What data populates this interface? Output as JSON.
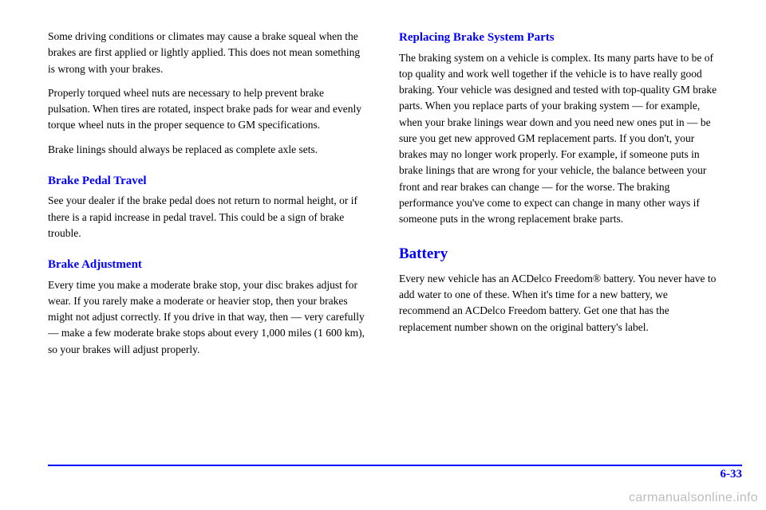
{
  "left": {
    "p1": "Some driving conditions or climates may cause a brake squeal when the brakes are first applied or lightly applied. This does not mean something is wrong with your brakes.",
    "p2": "Properly torqued wheel nuts are necessary to help prevent brake pulsation. When tires are rotated, inspect brake pads for wear and evenly torque wheel nuts in the proper sequence to GM specifications.",
    "p3": "Brake linings should always be replaced as complete axle sets.",
    "h_pedal": "Brake Pedal Travel",
    "p4": "See your dealer if the brake pedal does not return to normal height, or if there is a rapid increase in pedal travel. This could be a sign of brake trouble.",
    "h_adjust": "Brake Adjustment",
    "p5": "Every time you make a moderate brake stop, your disc brakes adjust for wear. If you rarely make a moderate or heavier stop, then your brakes might not adjust correctly. If you drive in that way, then — very carefully — make a few moderate brake stops about every 1,000 miles (1 600 km), so your brakes will adjust properly."
  },
  "right": {
    "h_replace": "Replacing Brake System Parts",
    "p1": "The braking system on a vehicle is complex. Its many parts have to be of top quality and work well together if the vehicle is to have really good braking. Your vehicle was designed and tested with top-quality GM brake parts. When you replace parts of your braking system — for example, when your brake linings wear down and you need new ones put in — be sure you get new approved GM replacement parts. If you don't, your brakes may no longer work properly. For example, if someone puts in brake linings that are wrong for your vehicle, the balance between your front and rear brakes can change — for the worse. The braking performance you've come to expect can change in many other ways if someone puts in the wrong replacement brake parts.",
    "h_battery": "Battery",
    "p2": "Every new vehicle has an ACDelco Freedom® battery. You never have to add water to one of these. When it's time for a new battery, we recommend an ACDelco Freedom battery. Get one that has the replacement number shown on the original battery's label."
  },
  "pagenum": "6-33",
  "watermark": "carmanualsonline.info",
  "colors": {
    "accent": "#0000ff",
    "text": "#000000",
    "bg": "#ffffff",
    "wm": "#bdbdbd"
  }
}
